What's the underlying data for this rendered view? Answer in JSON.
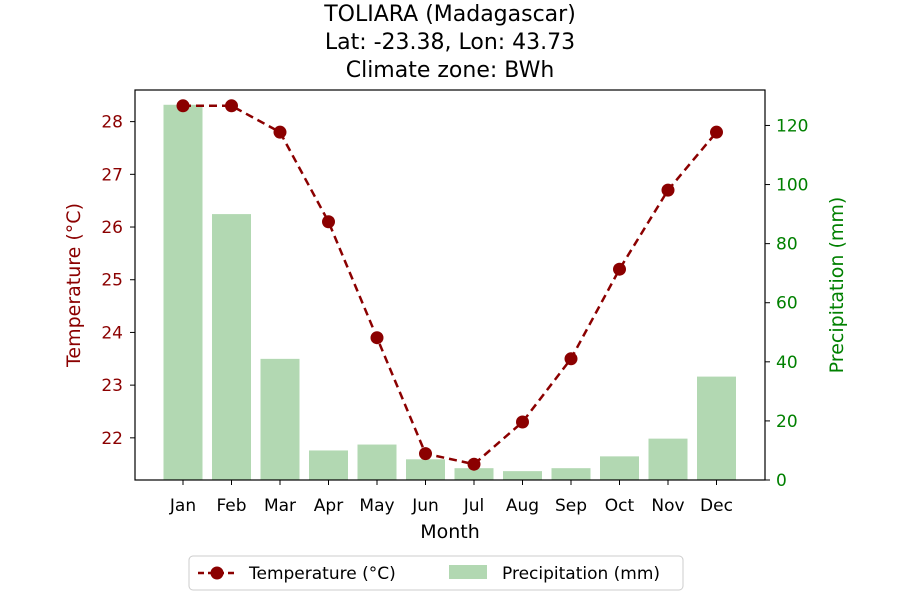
{
  "colors": {
    "temperature": "#8b0000",
    "precipitation": "#008000",
    "precip_bar": "#b2d8b2",
    "axis": "#000000"
  },
  "chart_data": {
    "type": "bar+line",
    "title_lines": [
      "TOLIARA (Madagascar)",
      "Lat: -23.38, Lon: 43.73",
      "Climate zone: BWh"
    ],
    "xlabel": "Month",
    "categories": [
      "Jan",
      "Feb",
      "Mar",
      "Apr",
      "May",
      "Jun",
      "Jul",
      "Aug",
      "Sep",
      "Oct",
      "Nov",
      "Dec"
    ],
    "temperature": {
      "name": "Temperature (°C)",
      "axis_label": "Temperature (°C)",
      "values": [
        28.3,
        28.3,
        27.8,
        26.1,
        23.9,
        21.7,
        21.5,
        22.3,
        23.5,
        25.2,
        26.7,
        27.8
      ],
      "ylim": [
        21.2,
        28.6
      ],
      "ticks": [
        22,
        23,
        24,
        25,
        26,
        27,
        28
      ]
    },
    "precipitation": {
      "name": "Precipitation (mm)",
      "axis_label": "Precipitation (mm)",
      "values": [
        127,
        90,
        41,
        10,
        12,
        7,
        4,
        3,
        4,
        8,
        14,
        35
      ],
      "ylim": [
        0,
        132
      ],
      "ticks": [
        0,
        20,
        40,
        60,
        80,
        100,
        120
      ]
    },
    "legend": {
      "placement": "bottom-center"
    }
  }
}
